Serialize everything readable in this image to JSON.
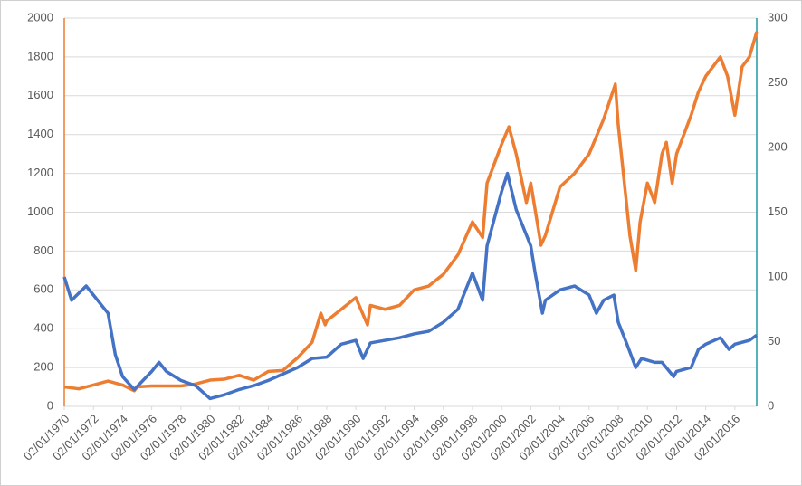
{
  "chart_data": {
    "type": "line",
    "xlim": [
      1970,
      2017.5
    ],
    "xticks": [
      {
        "value": 1970,
        "label": "02/01/1970"
      },
      {
        "value": 1972,
        "label": "02/01/1972"
      },
      {
        "value": 1974,
        "label": "02/01/1974"
      },
      {
        "value": 1976,
        "label": "02/01/1976"
      },
      {
        "value": 1978,
        "label": "02/01/1978"
      },
      {
        "value": 1980,
        "label": "02/01/1980"
      },
      {
        "value": 1982,
        "label": "02/01/1982"
      },
      {
        "value": 1984,
        "label": "02/01/1984"
      },
      {
        "value": 1986,
        "label": "02/01/1986"
      },
      {
        "value": 1988,
        "label": "02/01/1988"
      },
      {
        "value": 1990,
        "label": "02/01/1990"
      },
      {
        "value": 1992,
        "label": "02/01/1992"
      },
      {
        "value": 1994,
        "label": "02/01/1994"
      },
      {
        "value": 1996,
        "label": "02/01/1996"
      },
      {
        "value": 1998,
        "label": "02/01/1998"
      },
      {
        "value": 2000,
        "label": "02/01/2000"
      },
      {
        "value": 2002,
        "label": "02/01/2002"
      },
      {
        "value": 2004,
        "label": "02/01/2004"
      },
      {
        "value": 2006,
        "label": "02/01/2006"
      },
      {
        "value": 2008,
        "label": "02/01/2008"
      },
      {
        "value": 2010,
        "label": "02/01/2010"
      },
      {
        "value": 2012,
        "label": "02/01/2012"
      },
      {
        "value": 2014,
        "label": "02/01/2014"
      },
      {
        "value": 2016,
        "label": "02/01/2016"
      }
    ],
    "ylim": [
      0,
      2000
    ],
    "yticks": [
      0,
      200,
      400,
      600,
      800,
      1000,
      1200,
      1400,
      1600,
      1800,
      2000
    ],
    "y2lim": [
      0,
      300
    ],
    "y2ticks": [
      0,
      50,
      100,
      150,
      200,
      250,
      300
    ],
    "grid": true,
    "y_axis_color": "#ed7d31",
    "y2_axis_color": "#1f9aa0",
    "series": [
      {
        "color": "#ed7d31",
        "x": [
          1970,
          1971,
          1972,
          1973,
          1974,
          1974.8,
          1975,
          1976,
          1977,
          1978,
          1979,
          1980,
          1981,
          1982,
          1983,
          1984,
          1985,
          1986,
          1987,
          1987.6,
          1987.9,
          1988,
          1989,
          1990,
          1990.8,
          1991,
          1992,
          1993,
          1994,
          1995,
          1996,
          1997,
          1998,
          1998.7,
          1999,
          2000,
          2000.5,
          2001,
          2001.7,
          2002,
          2002.7,
          2003,
          2004,
          2005,
          2006,
          2007,
          2007.8,
          2008,
          2008.8,
          2009.2,
          2009.5,
          2010,
          2010.5,
          2011,
          2011.3,
          2011.7,
          2012,
          2013,
          2013.5,
          2014,
          2015,
          2015.5,
          2016,
          2016.5,
          2017,
          2017.5
        ],
        "values": [
          100,
          90,
          110,
          130,
          110,
          80,
          100,
          105,
          105,
          105,
          115,
          135,
          140,
          160,
          135,
          180,
          185,
          250,
          330,
          480,
          420,
          440,
          500,
          560,
          420,
          520,
          500,
          520,
          600,
          620,
          680,
          780,
          950,
          870,
          1150,
          1350,
          1440,
          1300,
          1050,
          1150,
          830,
          880,
          1130,
          1200,
          1300,
          1480,
          1660,
          1450,
          880,
          700,
          950,
          1150,
          1050,
          1300,
          1360,
          1150,
          1300,
          1500,
          1620,
          1700,
          1800,
          1700,
          1500,
          1750,
          1800,
          1930
        ]
      },
      {
        "color": "#4472c4",
        "axis": "y2",
        "x": [
          1970,
          1970.5,
          1971.5,
          1972,
          1973,
          1973.5,
          1974,
          1974.8,
          1976,
          1976.5,
          1977,
          1978,
          1979,
          1980,
          1981,
          1982,
          1983,
          1984,
          1985,
          1986,
          1987,
          1988,
          1989,
          1990,
          1990.5,
          1991,
          1992,
          1993,
          1994,
          1995,
          1996,
          1997,
          1998,
          1998.7,
          1999,
          2000,
          2000.4,
          2001,
          2002,
          2002.3,
          2002.8,
          2003,
          2004,
          2005,
          2006,
          2006.5,
          2007,
          2007.7,
          2008,
          2008.6,
          2009.2,
          2009.6,
          2010.5,
          2011,
          2011.8,
          2012,
          2013,
          2013.5,
          2014,
          2015,
          2015.6,
          2016,
          2017,
          2017.5
        ],
        "values": [
          100,
          82,
          93,
          86,
          72,
          40,
          23,
          13,
          27,
          34,
          27,
          20,
          16,
          6,
          9,
          13,
          16,
          20,
          25,
          30,
          37,
          38,
          48,
          51,
          37,
          49,
          51,
          53,
          56,
          58,
          65,
          75,
          103,
          82,
          124,
          166,
          180,
          152,
          124,
          103,
          72,
          82,
          90,
          93,
          86,
          72,
          82,
          86,
          65,
          48,
          30,
          37,
          34,
          34,
          23,
          27,
          30,
          44,
          48,
          53,
          44,
          48,
          51,
          55
        ]
      }
    ]
  }
}
